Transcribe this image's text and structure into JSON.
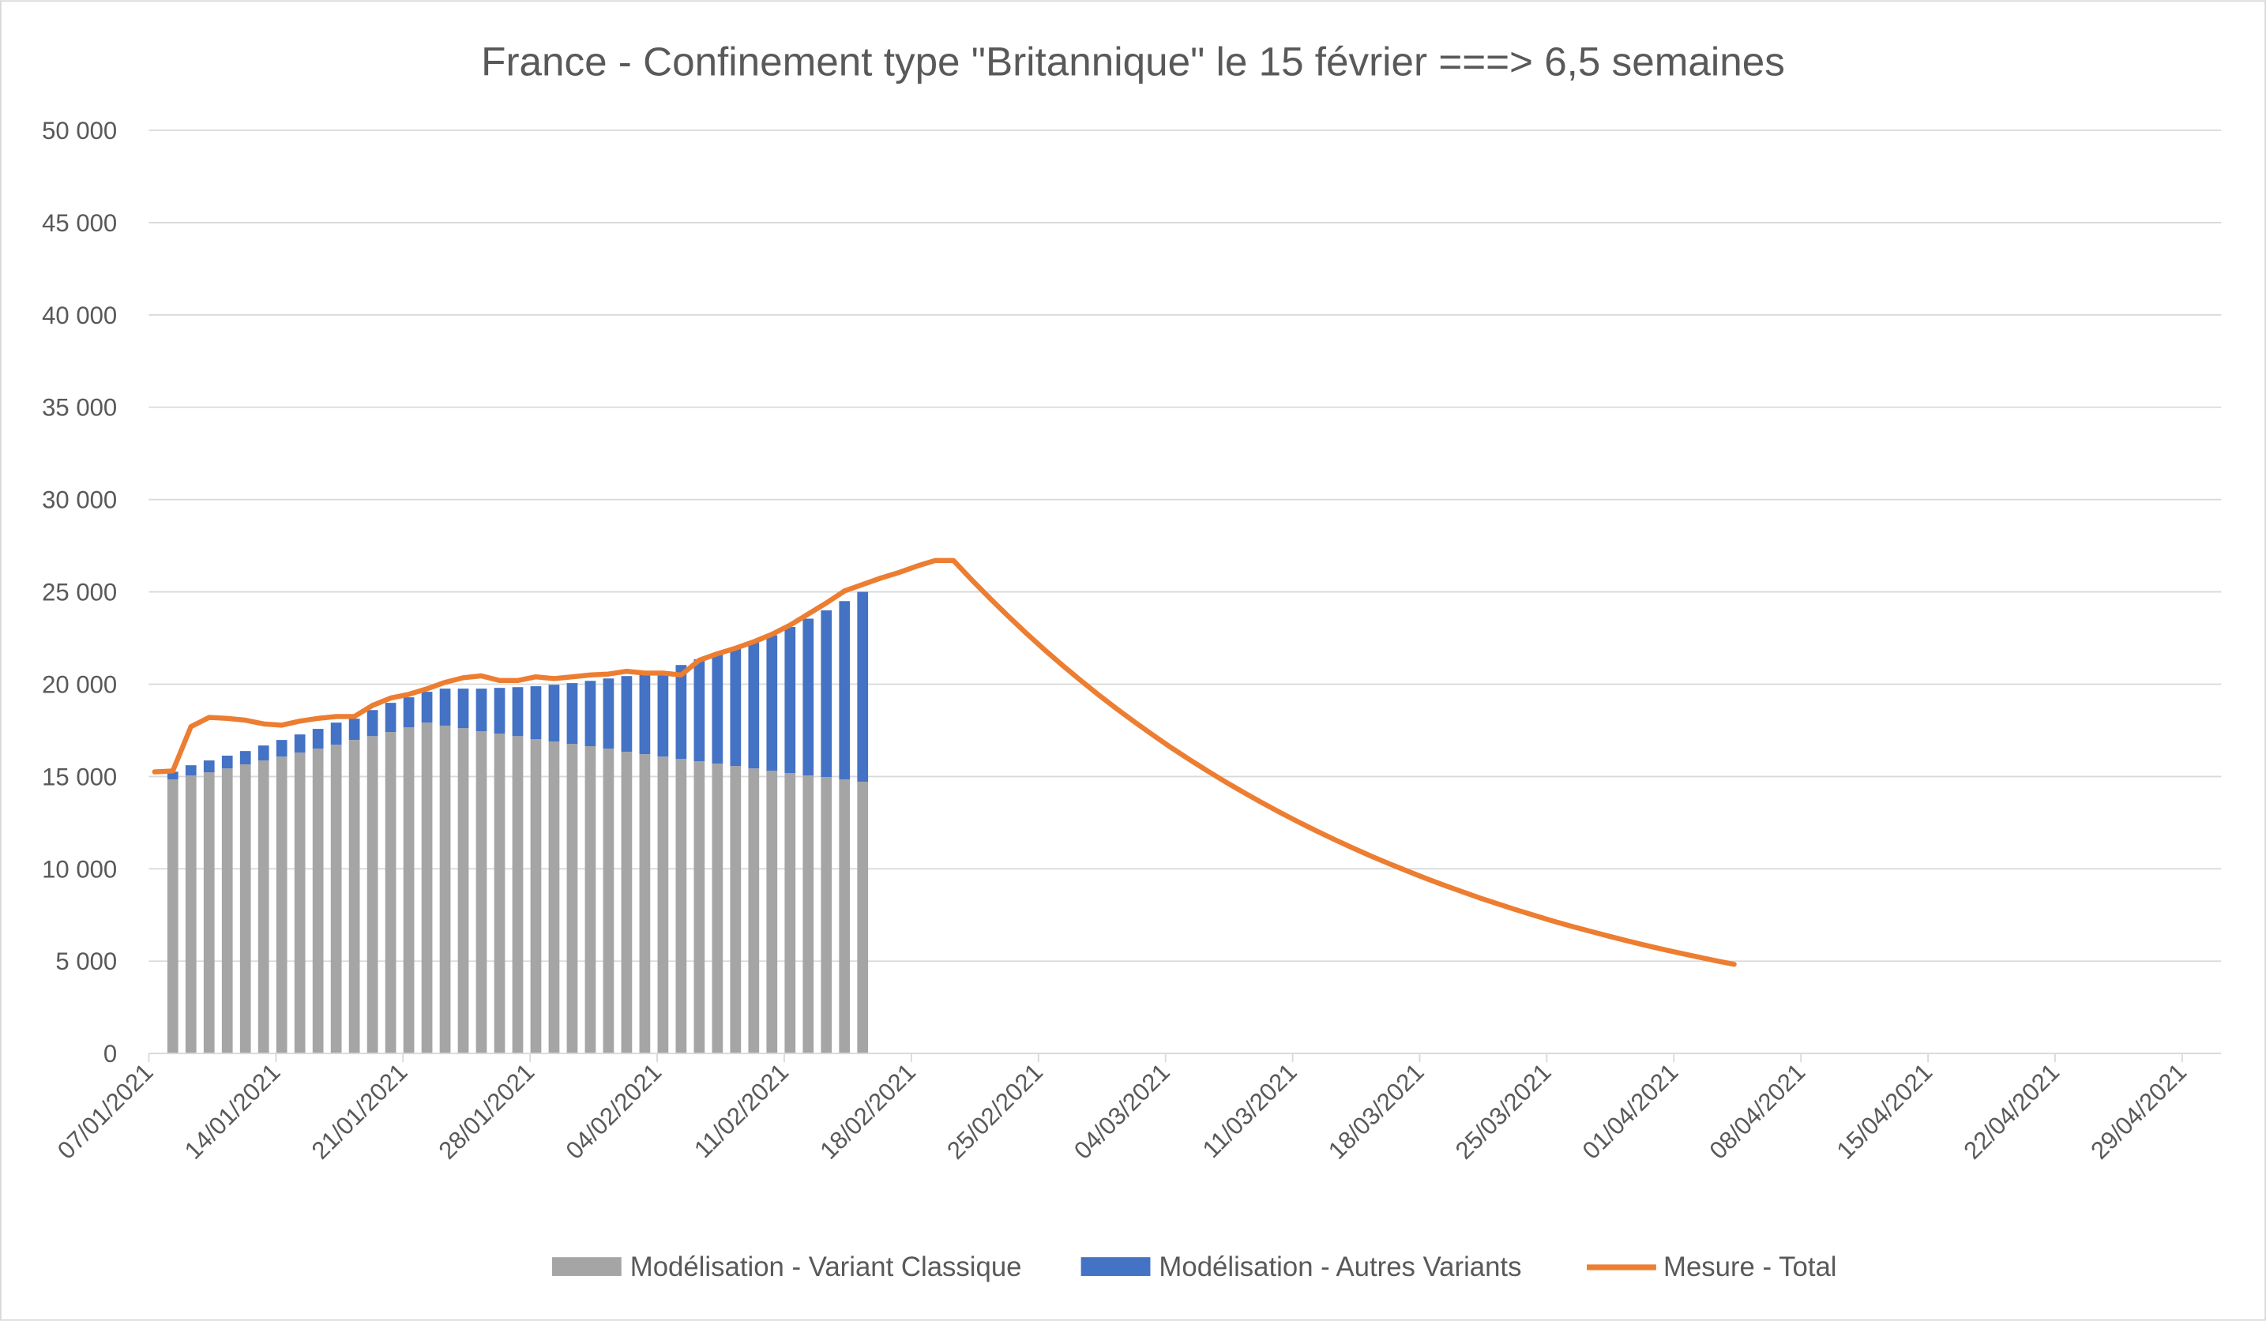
{
  "chart_data": {
    "type": "bar+line",
    "title": "France - Confinement type \"Britannique\" le 15 février ===> 6,5 semaines",
    "xlabel": "",
    "ylabel": "",
    "ylim": [
      0,
      50000
    ],
    "y_ticks": [
      "0",
      "5 000",
      "10 000",
      "15 000",
      "20 000",
      "25 000",
      "30 000",
      "35 000",
      "40 000",
      "45 000",
      "50 000"
    ],
    "x_ticks": [
      "07/01/2021",
      "14/01/2021",
      "21/01/2021",
      "28/01/2021",
      "04/02/2021",
      "11/02/2021",
      "18/02/2021",
      "25/02/2021",
      "04/03/2021",
      "11/03/2021",
      "18/03/2021",
      "25/03/2021",
      "01/04/2021",
      "08/04/2021",
      "15/04/2021",
      "22/04/2021",
      "29/04/2021"
    ],
    "x_range_days_from_start": [
      0,
      112
    ],
    "grid": "horizontal",
    "legend_position": "bottom",
    "bars_start_day": 1,
    "series": [
      {
        "name": "Modélisation - Variant Classique",
        "type": "stacked-bar",
        "color": "#a5a5a5",
        "values": [
          14840,
          15060,
          15230,
          15440,
          15660,
          15870,
          16080,
          16300,
          16510,
          16720,
          16980,
          17190,
          17410,
          17660,
          17920,
          17750,
          17620,
          17450,
          17320,
          17190,
          17020,
          16890,
          16770,
          16640,
          16510,
          16340,
          16210,
          16080,
          15950,
          15830,
          15700,
          15570,
          15440,
          15310,
          15190,
          15060,
          14970,
          14840,
          14720
        ]
      },
      {
        "name": "Modélisation - Autres Variants",
        "type": "stacked-bar",
        "color": "#4472c4",
        "values": [
          420,
          550,
          640,
          690,
          720,
          810,
          900,
          980,
          1070,
          1200,
          1150,
          1410,
          1580,
          1630,
          1670,
          2010,
          2140,
          2310,
          2480,
          2650,
          2870,
          3080,
          3290,
          3540,
          3800,
          4100,
          4290,
          4480,
          5090,
          5520,
          5950,
          6380,
          6860,
          7340,
          7910,
          8490,
          9030,
          9660,
          10280
        ]
      },
      {
        "name": "Mesure - Total",
        "type": "line",
        "color": "#ed7d31",
        "values": [
          15250,
          15300,
          17700,
          18200,
          18150,
          18050,
          17850,
          17780,
          18000,
          18150,
          18250,
          18250,
          18850,
          19250,
          19450,
          19750,
          20100,
          20350,
          20450,
          20200,
          20200,
          20400,
          20300,
          20400,
          20500,
          20550,
          20700,
          20600,
          20600,
          20500,
          21300,
          21650,
          21950,
          22300,
          22700,
          23200,
          23800,
          24400,
          25050,
          25400,
          25750,
          26050,
          26400,
          26700,
          26700,
          25660,
          24660,
          23700,
          22770,
          21880,
          21030,
          20210,
          19420,
          18660,
          17940,
          17240,
          16560,
          15920,
          15300,
          14700,
          14130,
          13580,
          13050,
          12540,
          12050,
          11580,
          11130,
          10690,
          10280,
          9880,
          9490,
          9120,
          8770,
          8420,
          8100,
          7780,
          7480,
          7180,
          6900,
          6640,
          6380,
          6130,
          5890,
          5660,
          5440,
          5230,
          5020,
          4830
        ]
      }
    ]
  }
}
